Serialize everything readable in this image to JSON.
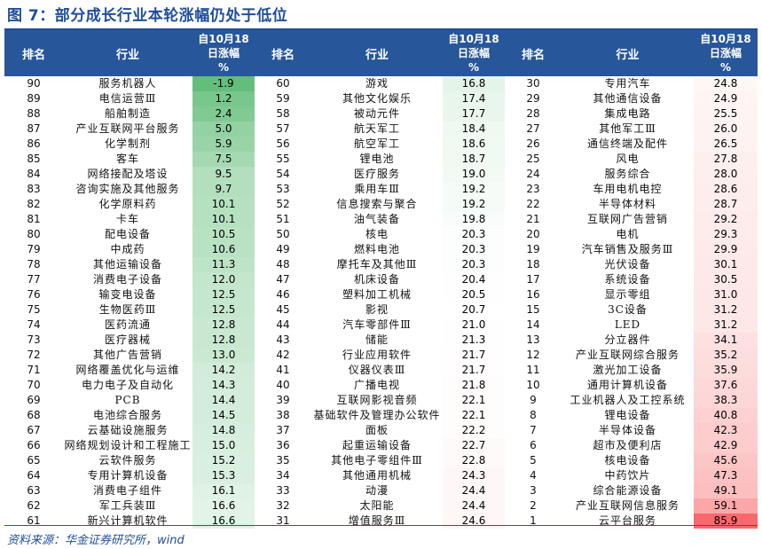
{
  "title": "图 7：部分成长行业本轮涨幅仍处于低位",
  "headers": {
    "rank": "排名",
    "industry": "行业",
    "pct": "自10月18日涨幅%"
  },
  "headers_split": [
    "自10月18",
    "日涨幅",
    "%"
  ],
  "columns": [
    {
      "rows": [
        {
          "rank": "90",
          "industry": "服务机器人",
          "pct": "-1.9"
        },
        {
          "rank": "89",
          "industry": "电信运营Ⅲ",
          "pct": "1.2"
        },
        {
          "rank": "88",
          "industry": "船舶制造",
          "pct": "2.4"
        },
        {
          "rank": "87",
          "industry": "产业互联网平台服务",
          "pct": "5.0"
        },
        {
          "rank": "86",
          "industry": "化学制剂",
          "pct": "5.9"
        },
        {
          "rank": "85",
          "industry": "客车",
          "pct": "7.5"
        },
        {
          "rank": "84",
          "industry": "网络接配及塔设",
          "pct": "9.5"
        },
        {
          "rank": "83",
          "industry": "咨询实施及其他服务",
          "pct": "9.7"
        },
        {
          "rank": "82",
          "industry": "化学原料药",
          "pct": "10.1"
        },
        {
          "rank": "81",
          "industry": "卡车",
          "pct": "10.1"
        },
        {
          "rank": "80",
          "industry": "配电设备",
          "pct": "10.5"
        },
        {
          "rank": "79",
          "industry": "中成药",
          "pct": "10.6"
        },
        {
          "rank": "78",
          "industry": "其他运输设备",
          "pct": "11.3"
        },
        {
          "rank": "77",
          "industry": "消费电子设备",
          "pct": "12.0"
        },
        {
          "rank": "76",
          "industry": "输变电设备",
          "pct": "12.5"
        },
        {
          "rank": "75",
          "industry": "生物医药Ⅲ",
          "pct": "12.5"
        },
        {
          "rank": "74",
          "industry": "医药流通",
          "pct": "12.8"
        },
        {
          "rank": "73",
          "industry": "医疗器械",
          "pct": "12.8"
        },
        {
          "rank": "72",
          "industry": "其他广告营销",
          "pct": "13.0"
        },
        {
          "rank": "71",
          "industry": "网络覆盖优化与运维",
          "pct": "14.2"
        },
        {
          "rank": "70",
          "industry": "电力电子及自动化",
          "pct": "14.3"
        },
        {
          "rank": "69",
          "industry": "PCB",
          "pct": "14.4"
        },
        {
          "rank": "68",
          "industry": "电池综合服务",
          "pct": "14.5"
        },
        {
          "rank": "67",
          "industry": "云基础设施服务",
          "pct": "14.8"
        },
        {
          "rank": "66",
          "industry": "网络规划设计和工程施工",
          "pct": "15.0"
        },
        {
          "rank": "65",
          "industry": "云软件服务",
          "pct": "15.2"
        },
        {
          "rank": "64",
          "industry": "专用计算机设备",
          "pct": "15.3"
        },
        {
          "rank": "63",
          "industry": "消费电子组件",
          "pct": "16.1"
        },
        {
          "rank": "62",
          "industry": "军工兵装Ⅲ",
          "pct": "16.6"
        },
        {
          "rank": "61",
          "industry": "新兴计算机软件",
          "pct": "16.6"
        }
      ]
    },
    {
      "rows": [
        {
          "rank": "60",
          "industry": "游戏",
          "pct": "16.8"
        },
        {
          "rank": "59",
          "industry": "其他文化娱乐",
          "pct": "17.4"
        },
        {
          "rank": "58",
          "industry": "被动元件",
          "pct": "17.7"
        },
        {
          "rank": "57",
          "industry": "航天军工",
          "pct": "18.4"
        },
        {
          "rank": "56",
          "industry": "航空军工",
          "pct": "18.6"
        },
        {
          "rank": "55",
          "industry": "锂电池",
          "pct": "18.7"
        },
        {
          "rank": "54",
          "industry": "医疗服务",
          "pct": "19.0"
        },
        {
          "rank": "53",
          "industry": "乘用车Ⅲ",
          "pct": "19.2"
        },
        {
          "rank": "52",
          "industry": "信息搜索与聚合",
          "pct": "19.2"
        },
        {
          "rank": "51",
          "industry": "油气装备",
          "pct": "19.8"
        },
        {
          "rank": "50",
          "industry": "核电",
          "pct": "20.3"
        },
        {
          "rank": "49",
          "industry": "燃料电池",
          "pct": "20.3"
        },
        {
          "rank": "48",
          "industry": "摩托车及其他Ⅲ",
          "pct": "20.3"
        },
        {
          "rank": "47",
          "industry": "机床设备",
          "pct": "20.4"
        },
        {
          "rank": "46",
          "industry": "塑料加工机械",
          "pct": "20.5"
        },
        {
          "rank": "45",
          "industry": "影视",
          "pct": "20.7"
        },
        {
          "rank": "44",
          "industry": "汽车零部件Ⅲ",
          "pct": "21.0"
        },
        {
          "rank": "43",
          "industry": "储能",
          "pct": "21.3"
        },
        {
          "rank": "42",
          "industry": "行业应用软件",
          "pct": "21.7"
        },
        {
          "rank": "41",
          "industry": "仪器仪表Ⅲ",
          "pct": "21.7"
        },
        {
          "rank": "40",
          "industry": "广播电视",
          "pct": "21.8"
        },
        {
          "rank": "39",
          "industry": "互联网影视音频",
          "pct": "22.1"
        },
        {
          "rank": "38",
          "industry": "基础软件及管理办公软件",
          "pct": "22.1"
        },
        {
          "rank": "37",
          "industry": "面板",
          "pct": "22.2"
        },
        {
          "rank": "36",
          "industry": "起重运输设备",
          "pct": "22.7"
        },
        {
          "rank": "35",
          "industry": "其他电子零组件Ⅲ",
          "pct": "22.8"
        },
        {
          "rank": "34",
          "industry": "其他通用机械",
          "pct": "24.3"
        },
        {
          "rank": "33",
          "industry": "动漫",
          "pct": "24.4"
        },
        {
          "rank": "32",
          "industry": "太阳能",
          "pct": "24.4"
        },
        {
          "rank": "31",
          "industry": "增值服务Ⅲ",
          "pct": "24.6"
        }
      ]
    },
    {
      "rows": [
        {
          "rank": "30",
          "industry": "专用汽车",
          "pct": "24.8"
        },
        {
          "rank": "29",
          "industry": "其他通信设备",
          "pct": "24.9"
        },
        {
          "rank": "28",
          "industry": "集成电路",
          "pct": "25.5"
        },
        {
          "rank": "27",
          "industry": "其他军工Ⅲ",
          "pct": "26.0"
        },
        {
          "rank": "26",
          "industry": "通信终端及配件",
          "pct": "26.5"
        },
        {
          "rank": "25",
          "industry": "风电",
          "pct": "27.8"
        },
        {
          "rank": "24",
          "industry": "服务综合",
          "pct": "28.0"
        },
        {
          "rank": "23",
          "industry": "车用电机电控",
          "pct": "28.6"
        },
        {
          "rank": "22",
          "industry": "半导体材料",
          "pct": "28.7"
        },
        {
          "rank": "21",
          "industry": "互联网广告营销",
          "pct": "29.2"
        },
        {
          "rank": "20",
          "industry": "电机",
          "pct": "29.3"
        },
        {
          "rank": "19",
          "industry": "汽车销售及服务Ⅲ",
          "pct": "29.9"
        },
        {
          "rank": "18",
          "industry": "光伏设备",
          "pct": "30.1"
        },
        {
          "rank": "17",
          "industry": "系统设备",
          "pct": "30.5"
        },
        {
          "rank": "16",
          "industry": "显示零组",
          "pct": "31.0"
        },
        {
          "rank": "15",
          "industry": "3C设备",
          "pct": "31.2"
        },
        {
          "rank": "14",
          "industry": "LED",
          "pct": "31.2"
        },
        {
          "rank": "13",
          "industry": "分立器件",
          "pct": "34.1"
        },
        {
          "rank": "12",
          "industry": "产业互联网综合服务",
          "pct": "35.2"
        },
        {
          "rank": "11",
          "industry": "激光加工设备",
          "pct": "35.9"
        },
        {
          "rank": "10",
          "industry": "通用计算机设备",
          "pct": "37.6"
        },
        {
          "rank": "9",
          "industry": "工业机器人及工控系统",
          "pct": "38.3"
        },
        {
          "rank": "8",
          "industry": "锂电设备",
          "pct": "40.8"
        },
        {
          "rank": "7",
          "industry": "半导体设备",
          "pct": "42.3"
        },
        {
          "rank": "6",
          "industry": "超市及便利店",
          "pct": "42.9"
        },
        {
          "rank": "5",
          "industry": "核电设备",
          "pct": "45.6"
        },
        {
          "rank": "4",
          "industry": "中药饮片",
          "pct": "47.3"
        },
        {
          "rank": "3",
          "industry": "综合能源设备",
          "pct": "49.1"
        },
        {
          "rank": "2",
          "industry": "产业互联网信息服务",
          "pct": "59.1"
        },
        {
          "rank": "1",
          "industry": "云平台服务",
          "pct": "85.9"
        }
      ]
    }
  ],
  "colors": {
    "header_bg": "#27579a",
    "title": "#1f4e9a",
    "green": "#63be7b",
    "white": "#ffffff",
    "red": "#f8696b"
  },
  "source": "资料来源：华金证券研究所，wind"
}
